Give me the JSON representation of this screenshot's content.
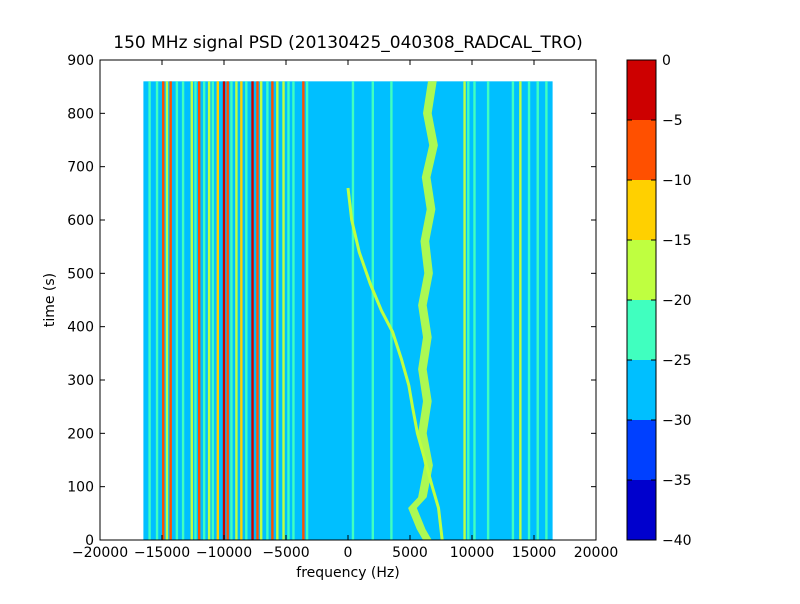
{
  "chart_data": {
    "type": "heatmap",
    "title": "150 MHz signal PSD (20130425_040308_RADCAL_TRO)",
    "xlabel": "frequency (Hz)",
    "ylabel": "time (s)",
    "xlim": [
      -20000,
      20000
    ],
    "ylim": [
      0,
      900
    ],
    "xticks": [
      -20000,
      -15000,
      -10000,
      -5000,
      0,
      5000,
      10000,
      15000,
      20000
    ],
    "xtick_labels": [
      "−20000",
      "−15000",
      "−10000",
      "−5000",
      "0",
      "5000",
      "10000",
      "15000",
      "20000"
    ],
    "yticks": [
      0,
      100,
      200,
      300,
      400,
      500,
      600,
      700,
      800,
      900
    ],
    "ytick_labels": [
      "0",
      "100",
      "200",
      "300",
      "400",
      "500",
      "600",
      "700",
      "800",
      "900"
    ],
    "data_extent": {
      "x": [
        -16500,
        16500
      ],
      "y": [
        0,
        860
      ]
    },
    "background_level": -30,
    "colorbar": {
      "levels": [
        -40,
        -35,
        -30,
        -25,
        -20,
        -15,
        -10,
        -5,
        0
      ],
      "tick_labels": [
        "−40",
        "−35",
        "−30",
        "−25",
        "−20",
        "−15",
        "−10",
        "−5",
        "0"
      ],
      "colors": [
        "#0000cd",
        "#0040ff",
        "#00bfff",
        "#40ffbf",
        "#bfff40",
        "#ffd000",
        "#ff5000",
        "#cd0000"
      ]
    },
    "vertical_lines": [
      {
        "x": -16000,
        "level": -25
      },
      {
        "x": -15400,
        "level": -25
      },
      {
        "x": -14900,
        "level": -10
      },
      {
        "x": -14600,
        "level": -20
      },
      {
        "x": -14300,
        "level": -10
      },
      {
        "x": -13800,
        "level": -25
      },
      {
        "x": -13300,
        "level": -25
      },
      {
        "x": -12600,
        "level": -20
      },
      {
        "x": -12300,
        "level": -25
      },
      {
        "x": -12000,
        "level": -10
      },
      {
        "x": -11600,
        "level": -25
      },
      {
        "x": -11200,
        "level": -20
      },
      {
        "x": -10900,
        "level": -25
      },
      {
        "x": -10500,
        "level": -15
      },
      {
        "x": -10000,
        "level": -5
      },
      {
        "x": -9700,
        "level": -10
      },
      {
        "x": -9400,
        "level": -25
      },
      {
        "x": -9000,
        "level": -20
      },
      {
        "x": -8600,
        "level": -15
      },
      {
        "x": -8200,
        "level": -25
      },
      {
        "x": -7700,
        "level": 0
      },
      {
        "x": -7300,
        "level": -10
      },
      {
        "x": -7000,
        "level": -20
      },
      {
        "x": -6500,
        "level": -25
      },
      {
        "x": -6100,
        "level": -10
      },
      {
        "x": -5700,
        "level": -20
      },
      {
        "x": -5200,
        "level": -20
      },
      {
        "x": -4800,
        "level": -25
      },
      {
        "x": -4400,
        "level": -25
      },
      {
        "x": -3600,
        "level": -10
      },
      {
        "x": -3300,
        "level": -25
      },
      {
        "x": 400,
        "level": -25
      },
      {
        "x": 2000,
        "level": -25
      },
      {
        "x": 3500,
        "level": -25
      },
      {
        "x": 9400,
        "level": -20
      },
      {
        "x": 9700,
        "level": -25
      },
      {
        "x": 10200,
        "level": -25
      },
      {
        "x": 11300,
        "level": -25
      },
      {
        "x": 13300,
        "level": -25
      },
      {
        "x": 13900,
        "level": -20
      },
      {
        "x": 14600,
        "level": -25
      },
      {
        "x": 15300,
        "level": -25
      },
      {
        "x": 16000,
        "level": -25
      }
    ],
    "moving_band": {
      "level": -20,
      "points": [
        [
          0,
          660
        ],
        [
          300,
          600
        ],
        [
          900,
          540
        ],
        [
          1800,
          480
        ],
        [
          2700,
          430
        ],
        [
          3600,
          390
        ],
        [
          4300,
          340
        ],
        [
          4900,
          290
        ],
        [
          5200,
          250
        ],
        [
          5600,
          200
        ],
        [
          6200,
          150
        ],
        [
          6800,
          100
        ],
        [
          7300,
          60
        ],
        [
          7600,
          0
        ]
      ]
    },
    "wavy_band": {
      "level": -20,
      "width": 700,
      "points": [
        [
          6800,
          860
        ],
        [
          6400,
          800
        ],
        [
          6900,
          740
        ],
        [
          6300,
          680
        ],
        [
          6700,
          620
        ],
        [
          6200,
          560
        ],
        [
          6500,
          500
        ],
        [
          6000,
          440
        ],
        [
          6400,
          380
        ],
        [
          6000,
          320
        ],
        [
          6400,
          260
        ],
        [
          6000,
          200
        ],
        [
          6500,
          140
        ],
        [
          6000,
          80
        ],
        [
          5200,
          60
        ],
        [
          5900,
          20
        ],
        [
          6400,
          0
        ]
      ]
    }
  }
}
